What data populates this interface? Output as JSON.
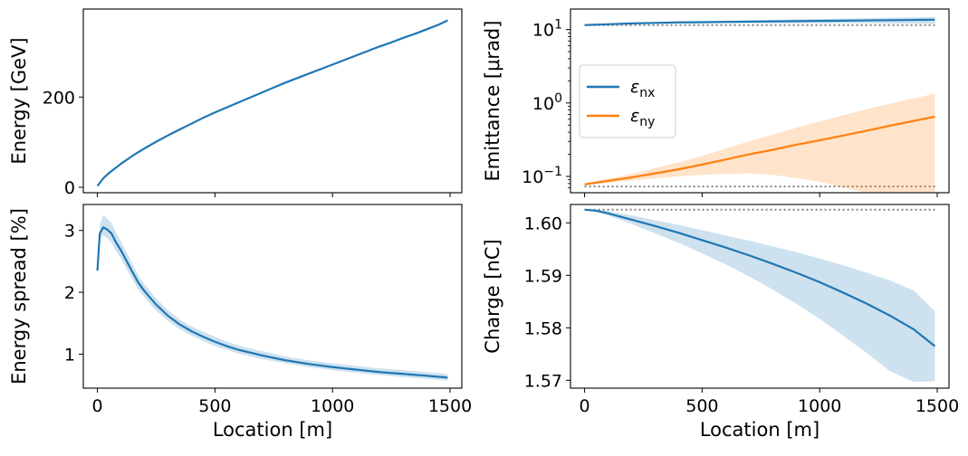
{
  "colors": {
    "blue": "#1f77b4",
    "orange": "#ff7f0e",
    "reference": "#808080"
  },
  "chart_data": [
    {
      "id": "energy",
      "type": "line",
      "title": "",
      "xlabel": "",
      "ylabel": "Energy [GeV]",
      "xlim": [
        -60,
        1550
      ],
      "ylim": [
        -12,
        395
      ],
      "yscale": "linear",
      "xticks": [
        0,
        500,
        1000,
        1500
      ],
      "xtick_labels": [
        "",
        "",
        "",
        ""
      ],
      "yticks": [
        0,
        200
      ],
      "ytick_labels": [
        "0",
        "200"
      ],
      "series": [
        {
          "color": "blue",
          "x": [
            0,
            25,
            50,
            100,
            150,
            200,
            250,
            300,
            350,
            400,
            450,
            500,
            550,
            600,
            650,
            700,
            750,
            800,
            850,
            900,
            950,
            1000,
            1050,
            1100,
            1150,
            1200,
            1250,
            1300,
            1350,
            1400,
            1450,
            1490
          ],
          "y": [
            3,
            20,
            32,
            52,
            70,
            86,
            101,
            115,
            128,
            141,
            154,
            166,
            177,
            188,
            199,
            210,
            221,
            232,
            242,
            252,
            262,
            272,
            282,
            292,
            302,
            312,
            321,
            331,
            340,
            350,
            360,
            370
          ]
        }
      ]
    },
    {
      "id": "emittance",
      "type": "line",
      "title": "",
      "xlabel": "",
      "ylabel": "Emittance [μrad]",
      "xlim": [
        -60,
        1550
      ],
      "ylim": [
        0.06,
        19
      ],
      "yscale": "log",
      "xticks": [
        0,
        500,
        1000,
        1500
      ],
      "xtick_labels": [
        "",
        "",
        "",
        ""
      ],
      "yticks": [
        0.1,
        1,
        10
      ],
      "ytick_labels": [
        "10⁻¹",
        "10⁰",
        "10¹"
      ],
      "legend": {
        "position": "center-left",
        "entries": [
          "εnx",
          "εny"
        ]
      },
      "series": [
        {
          "name": "εnx",
          "color": "blue",
          "x": [
            0,
            100,
            200,
            300,
            400,
            500,
            600,
            700,
            800,
            900,
            1000,
            1100,
            1200,
            1300,
            1400,
            1490
          ],
          "y": [
            11.5,
            11.8,
            12.1,
            12.3,
            12.5,
            12.6,
            12.7,
            12.8,
            12.9,
            13.0,
            13.1,
            13.2,
            13.3,
            13.4,
            13.5,
            13.6
          ],
          "band_low": [
            11.5,
            11.7,
            11.9,
            12.0,
            12.1,
            12.1,
            12.2,
            12.2,
            12.2,
            12.2,
            12.2,
            12.2,
            12.2,
            12.1,
            12.1,
            12.0
          ],
          "band_high": [
            11.5,
            11.9,
            12.3,
            12.6,
            12.8,
            13.0,
            13.2,
            13.4,
            13.5,
            13.7,
            13.9,
            14.1,
            14.3,
            14.5,
            14.7,
            14.9
          ]
        },
        {
          "name": "εny",
          "color": "orange",
          "x": [
            0,
            100,
            200,
            300,
            400,
            500,
            600,
            700,
            800,
            900,
            1000,
            1100,
            1200,
            1300,
            1400,
            1490
          ],
          "y": [
            0.078,
            0.087,
            0.097,
            0.11,
            0.125,
            0.145,
            0.17,
            0.2,
            0.23,
            0.27,
            0.31,
            0.36,
            0.42,
            0.49,
            0.57,
            0.65
          ],
          "band_low": [
            0.075,
            0.082,
            0.088,
            0.094,
            0.1,
            0.105,
            0.108,
            0.11,
            0.105,
            0.095,
            0.085,
            0.07,
            0.06,
            0.058,
            0.058,
            0.058
          ],
          "band_high": [
            0.08,
            0.093,
            0.108,
            0.13,
            0.155,
            0.19,
            0.24,
            0.3,
            0.37,
            0.46,
            0.56,
            0.68,
            0.82,
            0.98,
            1.15,
            1.35
          ]
        }
      ],
      "reference_lines": [
        {
          "y": 11.5,
          "style": "dotted"
        },
        {
          "y": 0.073,
          "style": "dotted"
        }
      ]
    },
    {
      "id": "energy_spread",
      "type": "line",
      "title": "",
      "xlabel": "Location [m]",
      "ylabel": "Energy spread [%]",
      "xlim": [
        -60,
        1550
      ],
      "ylim": [
        0.45,
        3.42
      ],
      "yscale": "linear",
      "xticks": [
        0,
        500,
        1000,
        1500
      ],
      "xtick_labels": [
        "0",
        "500",
        "1000",
        "1500"
      ],
      "yticks": [
        1,
        2,
        3
      ],
      "ytick_labels": [
        "1",
        "2",
        "3"
      ],
      "series": [
        {
          "color": "blue",
          "x": [
            0,
            10,
            25,
            40,
            60,
            80,
            100,
            125,
            150,
            175,
            200,
            250,
            300,
            350,
            400,
            450,
            500,
            550,
            600,
            700,
            800,
            900,
            1000,
            1100,
            1200,
            1300,
            1400,
            1490
          ],
          "y": [
            2.35,
            2.95,
            3.05,
            3.02,
            2.95,
            2.8,
            2.68,
            2.5,
            2.32,
            2.15,
            2.02,
            1.8,
            1.62,
            1.48,
            1.37,
            1.28,
            1.2,
            1.13,
            1.07,
            0.98,
            0.9,
            0.84,
            0.79,
            0.75,
            0.71,
            0.68,
            0.65,
            0.62
          ],
          "band_low": [
            2.35,
            2.85,
            2.92,
            2.88,
            2.8,
            2.66,
            2.55,
            2.37,
            2.2,
            2.04,
            1.92,
            1.7,
            1.54,
            1.4,
            1.3,
            1.21,
            1.13,
            1.07,
            1.01,
            0.92,
            0.85,
            0.79,
            0.74,
            0.7,
            0.66,
            0.63,
            0.6,
            0.57
          ],
          "band_high": [
            2.35,
            3.1,
            3.25,
            3.2,
            3.12,
            2.96,
            2.82,
            2.64,
            2.45,
            2.27,
            2.13,
            1.9,
            1.71,
            1.56,
            1.45,
            1.36,
            1.28,
            1.2,
            1.14,
            1.05,
            0.96,
            0.9,
            0.85,
            0.81,
            0.77,
            0.74,
            0.71,
            0.68
          ]
        }
      ]
    },
    {
      "id": "charge",
      "type": "line",
      "title": "",
      "xlabel": "Location [m]",
      "ylabel": "Charge [nC]",
      "xlim": [
        -60,
        1550
      ],
      "ylim": [
        1.5685,
        1.6035
      ],
      "yscale": "linear",
      "xticks": [
        0,
        500,
        1000,
        1500
      ],
      "xtick_labels": [
        "0",
        "500",
        "1000",
        "1500"
      ],
      "yticks": [
        1.57,
        1.58,
        1.59,
        1.6
      ],
      "ytick_labels": [
        "1.57",
        "1.58",
        "1.59",
        "1.60"
      ],
      "series": [
        {
          "color": "blue",
          "x": [
            0,
            50,
            100,
            200,
            300,
            400,
            500,
            600,
            700,
            800,
            900,
            1000,
            1100,
            1200,
            1300,
            1400,
            1490
          ],
          "y": [
            1.6025,
            1.6023,
            1.6018,
            1.6006,
            1.5994,
            1.5981,
            1.5967,
            1.5953,
            1.5938,
            1.5922,
            1.5905,
            1.5887,
            1.5867,
            1.5846,
            1.5823,
            1.5797,
            1.5765
          ],
          "band_low": [
            1.6025,
            1.6021,
            1.6014,
            1.5998,
            1.598,
            1.5962,
            1.5942,
            1.5921,
            1.5898,
            1.5873,
            1.5846,
            1.5817,
            1.5785,
            1.5752,
            1.5717,
            1.5697,
            1.5698
          ],
          "band_high": [
            1.6025,
            1.6025,
            1.6022,
            1.6014,
            1.6005,
            1.5996,
            1.5986,
            1.5976,
            1.5966,
            1.5955,
            1.5944,
            1.5932,
            1.5919,
            1.5905,
            1.589,
            1.5871,
            1.5832
          ]
        }
      ],
      "reference_lines": [
        {
          "y": 1.6025,
          "style": "dotted"
        }
      ]
    }
  ]
}
